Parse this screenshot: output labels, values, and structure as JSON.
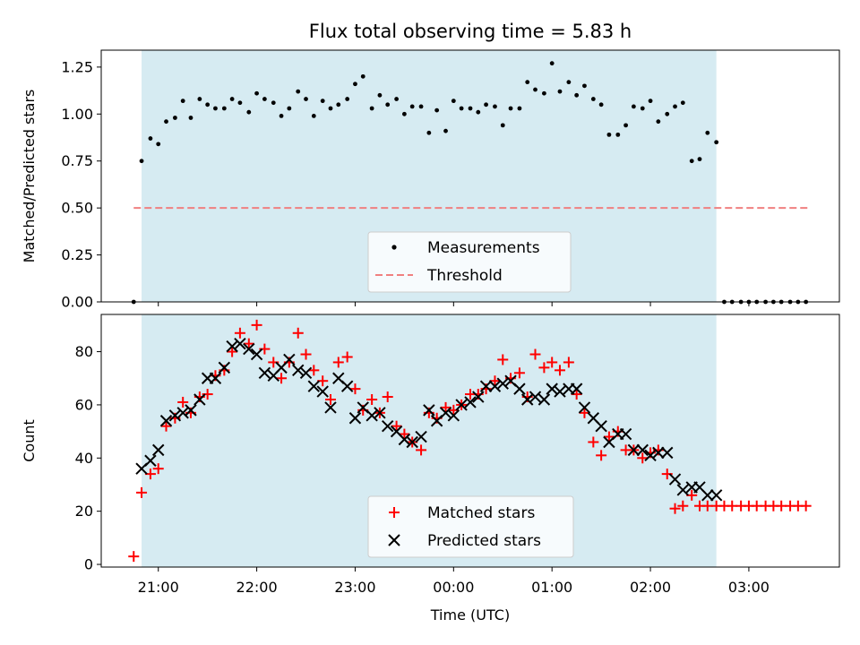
{
  "chart_data": [
    {
      "type": "scatter",
      "title": "Flux total observing time = 5.83 h",
      "xlabel": "",
      "ylabel": "Matched/Predicted stars",
      "x_unit": "hours since 00:00 UTC",
      "xlim": [
        -3.58,
        3.92
      ],
      "ylim": [
        0,
        1.34
      ],
      "yticks": [
        0.0,
        0.25,
        0.5,
        0.75,
        1.0,
        1.25
      ],
      "ytick_labels": [
        "0.00",
        "0.25",
        "0.50",
        "0.75",
        "1.00",
        "1.25"
      ],
      "shaded_interval": [
        -3.17,
        2.67
      ],
      "legend": {
        "placement": "lower center",
        "entries": [
          "Measurements",
          "Threshold"
        ]
      },
      "threshold": {
        "name": "Threshold",
        "value": 0.5,
        "x_range": [
          -3.25,
          3.6
        ],
        "color": "#f08080"
      },
      "series": [
        {
          "name": "Measurements",
          "color": "#000000",
          "x": [
            -3.25,
            -3.17,
            -3.08,
            -3.0,
            -2.92,
            -2.83,
            -2.75,
            -2.67,
            -2.58,
            -2.5,
            -2.42,
            -2.33,
            -2.25,
            -2.17,
            -2.08,
            -2.0,
            -1.92,
            -1.83,
            -1.75,
            -1.67,
            -1.58,
            -1.5,
            -1.42,
            -1.33,
            -1.25,
            -1.17,
            -1.08,
            -1.0,
            -0.92,
            -0.83,
            -0.75,
            -0.67,
            -0.58,
            -0.5,
            -0.42,
            -0.33,
            -0.25,
            -0.17,
            -0.08,
            0.0,
            0.08,
            0.17,
            0.25,
            0.33,
            0.42,
            0.5,
            0.58,
            0.67,
            0.75,
            0.83,
            0.92,
            1.0,
            1.08,
            1.17,
            1.25,
            1.33,
            1.42,
            1.5,
            1.58,
            1.67,
            1.75,
            1.83,
            1.92,
            2.0,
            2.08,
            2.17,
            2.25,
            2.33,
            2.42,
            2.5,
            2.58,
            2.67,
            2.75,
            2.83,
            2.92,
            3.0,
            3.08,
            3.17,
            3.25,
            3.33,
            3.42,
            3.5,
            3.58
          ],
          "y": [
            0.0,
            0.75,
            0.87,
            0.84,
            0.96,
            0.98,
            1.07,
            0.98,
            1.08,
            1.05,
            1.03,
            1.03,
            1.08,
            1.06,
            1.01,
            1.11,
            1.08,
            1.06,
            0.99,
            1.03,
            1.12,
            1.08,
            0.99,
            1.07,
            1.03,
            1.05,
            1.08,
            1.16,
            1.2,
            1.03,
            1.1,
            1.05,
            1.08,
            1.0,
            1.04,
            1.04,
            0.9,
            1.02,
            0.91,
            1.07,
            1.03,
            1.03,
            1.01,
            1.05,
            1.04,
            0.94,
            1.03,
            1.03,
            1.17,
            1.13,
            1.11,
            1.27,
            1.12,
            1.17,
            1.1,
            1.15,
            1.08,
            1.05,
            0.89,
            0.89,
            0.94,
            1.04,
            1.03,
            1.07,
            0.96,
            1.0,
            1.04,
            1.06,
            0.75,
            0.76,
            0.9,
            0.85,
            0.0,
            0.0,
            0.0,
            0.0,
            0.0,
            0.0,
            0.0,
            0.0,
            0.0,
            0.0,
            0.0
          ]
        }
      ]
    },
    {
      "type": "scatter",
      "title": "",
      "xlabel": "Time (UTC)",
      "ylabel": "Count",
      "x_unit": "hours since 00:00 UTC",
      "xlim": [
        -3.58,
        3.92
      ],
      "ylim": [
        -1,
        94
      ],
      "yticks": [
        0,
        20,
        40,
        60,
        80
      ],
      "ytick_labels": [
        "0",
        "20",
        "40",
        "60",
        "80"
      ],
      "xticks": [
        -3,
        -2,
        -1,
        0,
        1,
        2,
        3
      ],
      "xtick_labels": [
        "21:00",
        "22:00",
        "23:00",
        "00:00",
        "01:00",
        "02:00",
        "03:00"
      ],
      "shaded_interval": [
        -3.17,
        2.67
      ],
      "legend": {
        "placement": "lower center",
        "entries": [
          "Matched stars",
          "Predicted stars"
        ]
      },
      "series": [
        {
          "name": "Matched stars",
          "color": "#ff0000",
          "marker": "plus",
          "x": [
            -3.25,
            -3.17,
            -3.08,
            -3.0,
            -2.92,
            -2.83,
            -2.75,
            -2.67,
            -2.58,
            -2.5,
            -2.42,
            -2.33,
            -2.25,
            -2.17,
            -2.08,
            -2.0,
            -1.92,
            -1.83,
            -1.75,
            -1.67,
            -1.58,
            -1.5,
            -1.42,
            -1.33,
            -1.25,
            -1.17,
            -1.08,
            -1.0,
            -0.92,
            -0.83,
            -0.75,
            -0.67,
            -0.58,
            -0.5,
            -0.42,
            -0.33,
            -0.25,
            -0.17,
            -0.08,
            0.0,
            0.08,
            0.17,
            0.25,
            0.33,
            0.42,
            0.5,
            0.58,
            0.67,
            0.75,
            0.83,
            0.92,
            1.0,
            1.08,
            1.17,
            1.25,
            1.33,
            1.42,
            1.5,
            1.58,
            1.67,
            1.75,
            1.83,
            1.92,
            2.0,
            2.08,
            2.17,
            2.25,
            2.33,
            2.42,
            2.5,
            2.58,
            2.67,
            2.75,
            2.83,
            2.92,
            3.0,
            3.08,
            3.17,
            3.25,
            3.33,
            3.42,
            3.5,
            3.58
          ],
          "y": [
            3,
            27,
            34,
            36,
            52,
            55,
            61,
            57,
            63,
            64,
            71,
            73,
            80,
            87,
            83,
            90,
            81,
            76,
            70,
            76,
            87,
            79,
            73,
            69,
            62,
            76,
            78,
            66,
            58,
            62,
            57,
            63,
            52,
            49,
            46,
            43,
            57,
            55,
            59,
            58,
            60,
            64,
            64,
            66,
            69,
            77,
            70,
            72,
            63,
            79,
            74,
            76,
            73,
            76,
            64,
            57,
            46,
            41,
            48,
            50,
            43,
            43,
            40,
            42,
            43,
            34,
            21,
            22,
            26,
            22,
            22,
            22,
            22,
            22,
            22,
            22,
            22,
            22,
            22,
            22,
            22,
            22,
            22
          ]
        },
        {
          "name": "Predicted stars",
          "color": "#000000",
          "marker": "x",
          "x": [
            -3.17,
            -3.08,
            -3.0,
            -2.92,
            -2.83,
            -2.75,
            -2.67,
            -2.58,
            -2.5,
            -2.42,
            -2.33,
            -2.25,
            -2.17,
            -2.08,
            -2.0,
            -1.92,
            -1.83,
            -1.75,
            -1.67,
            -1.58,
            -1.5,
            -1.42,
            -1.33,
            -1.25,
            -1.17,
            -1.08,
            -1.0,
            -0.92,
            -0.83,
            -0.75,
            -0.67,
            -0.58,
            -0.5,
            -0.42,
            -0.33,
            -0.25,
            -0.17,
            -0.08,
            0.0,
            0.08,
            0.17,
            0.25,
            0.33,
            0.42,
            0.5,
            0.58,
            0.67,
            0.75,
            0.83,
            0.92,
            1.0,
            1.08,
            1.17,
            1.25,
            1.33,
            1.42,
            1.5,
            1.58,
            1.67,
            1.75,
            1.83,
            1.92,
            2.0,
            2.08,
            2.17,
            2.25,
            2.33,
            2.42,
            2.5,
            2.58,
            2.67
          ],
          "y": [
            36,
            39,
            43,
            54,
            56,
            57,
            58,
            62,
            70,
            70,
            74,
            82,
            83,
            81,
            79,
            72,
            71,
            74,
            77,
            73,
            72,
            67,
            65,
            59,
            70,
            67,
            55,
            59,
            56,
            57,
            52,
            50,
            47,
            46,
            48,
            58,
            54,
            57,
            56,
            60,
            61,
            63,
            67,
            67,
            68,
            69,
            66,
            62,
            63,
            62,
            66,
            65,
            66,
            66,
            59,
            55,
            52,
            46,
            49,
            49,
            43,
            43,
            41,
            42,
            42,
            32,
            28,
            29,
            29,
            26,
            26
          ]
        }
      ]
    }
  ]
}
